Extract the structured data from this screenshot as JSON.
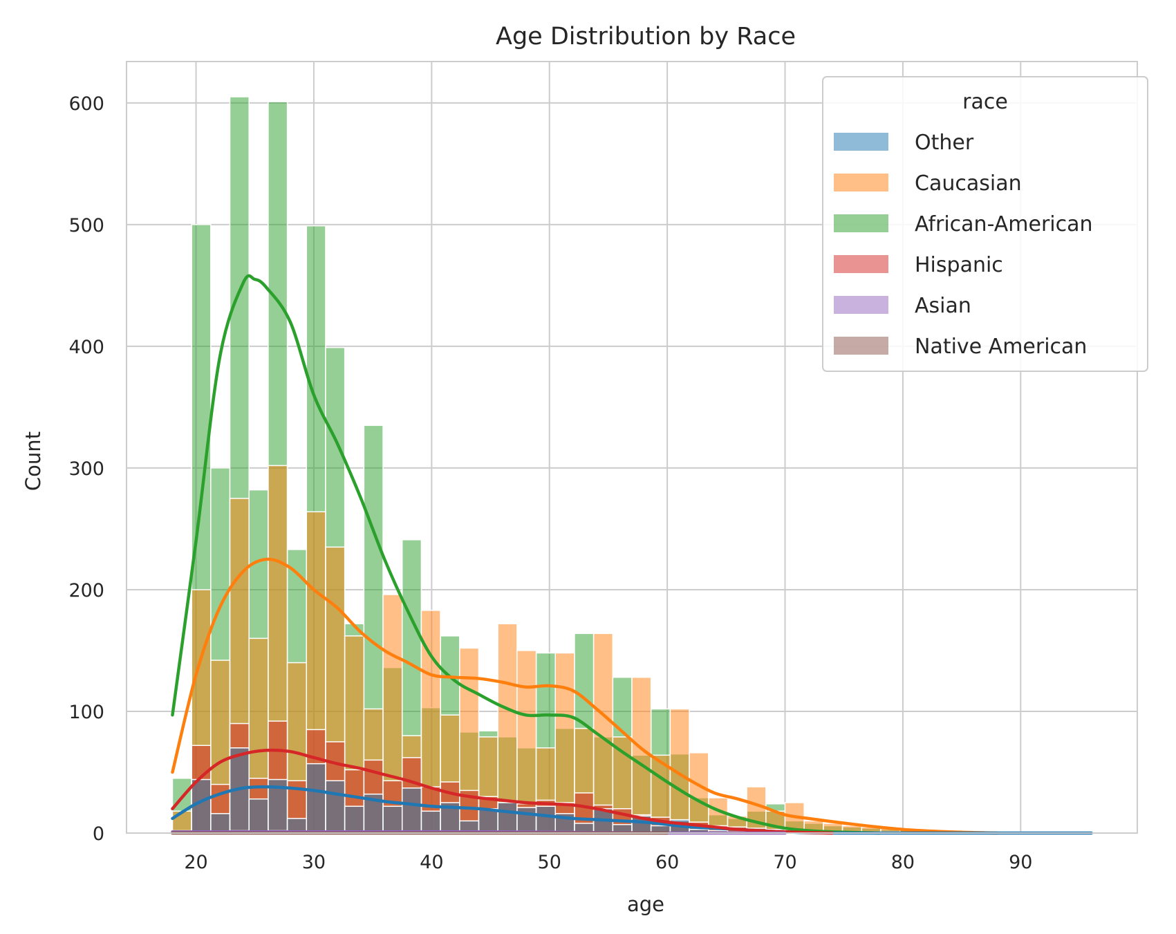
{
  "chart_data": {
    "type": "histogram",
    "title": "Age Distribution by Race",
    "xlabel": "age",
    "ylabel": "Count",
    "xlim": [
      14.1,
      99.9
    ],
    "ylim": [
      0,
      634
    ],
    "xticks": [
      20,
      30,
      40,
      50,
      60,
      70,
      80,
      90
    ],
    "yticks": [
      0,
      100,
      200,
      300,
      400,
      500,
      600
    ],
    "grid": true,
    "legend": {
      "title": "race",
      "placement": "top-right"
    },
    "bins": {
      "start": 18.0,
      "width": 1.625,
      "count": 48
    },
    "series": [
      {
        "name": "African-American",
        "color": "#2ca02c",
        "counts": [
          45,
          500,
          300,
          605,
          282,
          601,
          233,
          499,
          399,
          172,
          335,
          136,
          241,
          103,
          162,
          83,
          84,
          79,
          70,
          148,
          86,
          164,
          79,
          128,
          64,
          102,
          65,
          29,
          15,
          12,
          18,
          24,
          10,
          8,
          6,
          5,
          4,
          3,
          3,
          2,
          2,
          1,
          1,
          1,
          1,
          0,
          0,
          0
        ],
        "kde": [
          [
            18,
            97
          ],
          [
            20,
            240
          ],
          [
            22,
            390
          ],
          [
            24,
            452
          ],
          [
            25,
            455
          ],
          [
            26,
            448
          ],
          [
            28,
            420
          ],
          [
            30,
            360
          ],
          [
            32,
            320
          ],
          [
            34,
            275
          ],
          [
            36,
            225
          ],
          [
            38,
            182
          ],
          [
            40,
            145
          ],
          [
            42,
            125
          ],
          [
            44,
            114
          ],
          [
            46,
            104
          ],
          [
            48,
            97
          ],
          [
            50,
            97
          ],
          [
            52,
            95
          ],
          [
            54,
            82
          ],
          [
            56,
            68
          ],
          [
            58,
            55
          ],
          [
            60,
            42
          ],
          [
            62,
            30
          ],
          [
            64,
            20
          ],
          [
            66,
            13
          ],
          [
            68,
            8
          ],
          [
            70,
            4
          ],
          [
            72,
            2
          ],
          [
            74,
            1
          ],
          [
            78,
            0
          ]
        ]
      },
      {
        "name": "Caucasian",
        "color": "#ff7f0e",
        "counts": [
          18,
          200,
          142,
          275,
          160,
          302,
          140,
          264,
          235,
          162,
          102,
          196,
          80,
          183,
          97,
          152,
          79,
          172,
          150,
          70,
          148,
          86,
          164,
          79,
          128,
          64,
          102,
          66,
          29,
          14,
          38,
          18,
          25,
          10,
          8,
          6,
          5,
          4,
          3,
          3,
          2,
          1,
          1,
          1,
          1,
          0,
          0,
          0
        ],
        "kde": [
          [
            18,
            50
          ],
          [
            20,
            130
          ],
          [
            22,
            185
          ],
          [
            24,
            215
          ],
          [
            26,
            225
          ],
          [
            28,
            218
          ],
          [
            30,
            200
          ],
          [
            32,
            185
          ],
          [
            34,
            165
          ],
          [
            36,
            150
          ],
          [
            38,
            140
          ],
          [
            40,
            130
          ],
          [
            42,
            128
          ],
          [
            44,
            127
          ],
          [
            46,
            124
          ],
          [
            48,
            120
          ],
          [
            50,
            121
          ],
          [
            52,
            117
          ],
          [
            54,
            102
          ],
          [
            56,
            85
          ],
          [
            58,
            68
          ],
          [
            60,
            55
          ],
          [
            62,
            43
          ],
          [
            64,
            33
          ],
          [
            66,
            28
          ],
          [
            68,
            22
          ],
          [
            70,
            15
          ],
          [
            72,
            12
          ],
          [
            76,
            7
          ],
          [
            80,
            3
          ],
          [
            84,
            1
          ],
          [
            88,
            0
          ]
        ]
      },
      {
        "name": "Hispanic",
        "color": "#d62728",
        "counts": [
          2,
          72,
          40,
          90,
          45,
          92,
          43,
          85,
          75,
          52,
          60,
          43,
          62,
          38,
          42,
          35,
          30,
          25,
          24,
          27,
          25,
          33,
          23,
          20,
          15,
          13,
          10,
          9,
          6,
          5,
          4,
          3,
          2,
          2,
          1,
          1,
          1,
          1,
          0,
          0,
          0,
          0,
          0,
          0,
          0,
          0,
          0,
          0
        ],
        "kde": [
          [
            18,
            20
          ],
          [
            20,
            42
          ],
          [
            22,
            58
          ],
          [
            24,
            65
          ],
          [
            26,
            68
          ],
          [
            28,
            67
          ],
          [
            30,
            62
          ],
          [
            32,
            57
          ],
          [
            34,
            53
          ],
          [
            36,
            48
          ],
          [
            38,
            43
          ],
          [
            40,
            37
          ],
          [
            42,
            32
          ],
          [
            44,
            29
          ],
          [
            46,
            27
          ],
          [
            48,
            25
          ],
          [
            50,
            24
          ],
          [
            52,
            23
          ],
          [
            54,
            20
          ],
          [
            56,
            16
          ],
          [
            58,
            12
          ],
          [
            60,
            9
          ],
          [
            62,
            7
          ],
          [
            64,
            5
          ],
          [
            66,
            3
          ],
          [
            70,
            1
          ],
          [
            74,
            0
          ]
        ]
      },
      {
        "name": "Other",
        "color": "#1f77b4",
        "counts": [
          0,
          44,
          16,
          70,
          28,
          44,
          12,
          57,
          43,
          22,
          32,
          22,
          37,
          18,
          25,
          10,
          20,
          25,
          21,
          22,
          16,
          8,
          20,
          7,
          14,
          6,
          11,
          3,
          2,
          1,
          1,
          1,
          1,
          0,
          0,
          0,
          0,
          0,
          0,
          0,
          0,
          0,
          0,
          0,
          0,
          0,
          0,
          1
        ],
        "kde": [
          [
            18,
            12
          ],
          [
            20,
            24
          ],
          [
            22,
            32
          ],
          [
            24,
            37
          ],
          [
            26,
            38
          ],
          [
            28,
            37
          ],
          [
            30,
            35
          ],
          [
            32,
            32
          ],
          [
            34,
            29
          ],
          [
            36,
            26
          ],
          [
            38,
            24
          ],
          [
            40,
            22
          ],
          [
            42,
            21
          ],
          [
            44,
            20
          ],
          [
            46,
            18
          ],
          [
            48,
            16
          ],
          [
            50,
            14
          ],
          [
            52,
            12
          ],
          [
            54,
            11
          ],
          [
            56,
            10
          ],
          [
            58,
            9
          ],
          [
            60,
            7
          ],
          [
            62,
            5
          ],
          [
            64,
            4
          ],
          [
            66,
            3
          ],
          [
            70,
            1
          ],
          [
            75,
            0
          ],
          [
            96,
            0
          ]
        ]
      },
      {
        "name": "Asian",
        "color": "#9467bd",
        "counts": [
          0,
          1,
          1,
          2,
          1,
          2,
          1,
          1,
          1,
          1,
          1,
          1,
          1,
          1,
          1,
          0,
          1,
          1,
          0,
          1,
          0,
          1,
          0,
          0,
          0,
          0,
          0,
          0,
          0,
          0,
          0,
          0,
          0,
          0,
          0,
          0,
          0,
          0,
          0,
          0,
          0,
          0,
          0,
          0,
          0,
          0,
          0,
          0
        ],
        "kde": [
          [
            18,
            1
          ],
          [
            30,
            1
          ],
          [
            45,
            1
          ],
          [
            60,
            0
          ],
          [
            70,
            0
          ]
        ]
      },
      {
        "name": "Native American",
        "color": "#8c564b",
        "counts": [
          0,
          0,
          0,
          1,
          0,
          1,
          0,
          1,
          0,
          0,
          1,
          0,
          0,
          0,
          0,
          0,
          0,
          0,
          0,
          0,
          0,
          0,
          0,
          0,
          0,
          0,
          0,
          0,
          0,
          0,
          0,
          0,
          0,
          0,
          0,
          0,
          0,
          0,
          0,
          0,
          0,
          0,
          0,
          0,
          0,
          0,
          0,
          0
        ],
        "kde": [
          [
            18,
            0
          ],
          [
            40,
            0
          ],
          [
            60,
            0
          ]
        ]
      }
    ],
    "legend_order": [
      "Other",
      "Caucasian",
      "African-American",
      "Hispanic",
      "Asian",
      "Native American"
    ]
  }
}
